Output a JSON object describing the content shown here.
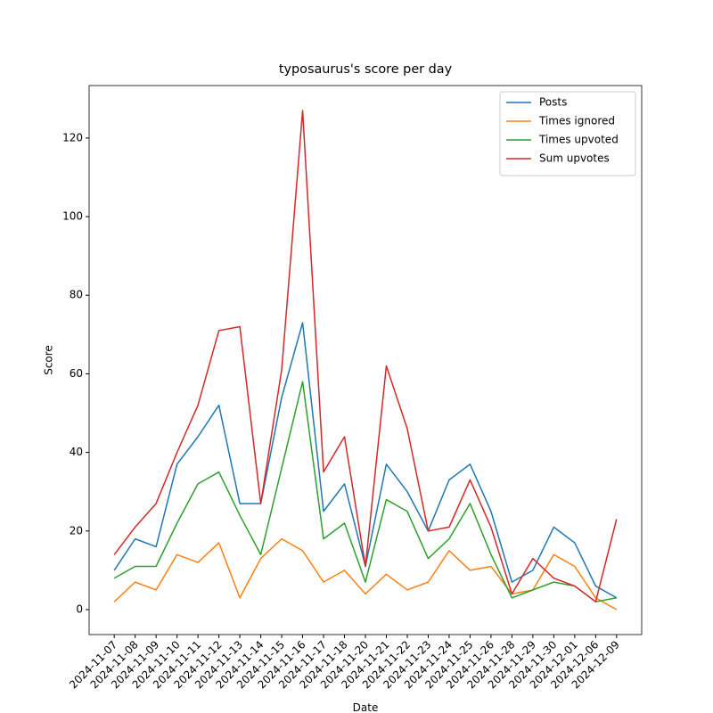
{
  "chart_data": {
    "type": "line",
    "title": "typosaurus's score per day",
    "xlabel": "Date",
    "ylabel": "Score",
    "categories": [
      "2024-11-07",
      "2024-11-08",
      "2024-11-09",
      "2024-11-10",
      "2024-11-11",
      "2024-11-12",
      "2024-11-13",
      "2024-11-14",
      "2024-11-15",
      "2024-11-16",
      "2024-11-17",
      "2024-11-18",
      "2024-11-20",
      "2024-11-21",
      "2024-11-22",
      "2024-11-23",
      "2024-11-24",
      "2024-11-25",
      "2024-11-26",
      "2024-11-28",
      "2024-11-29",
      "2024-11-30",
      "2024-12-01",
      "2024-12-06",
      "2024-12-09"
    ],
    "series": [
      {
        "name": "Posts",
        "color": "#1f77b4",
        "values": [
          10,
          18,
          16,
          37,
          44,
          52,
          27,
          27,
          54,
          73,
          25,
          32,
          11,
          37,
          30,
          20,
          33,
          37,
          25,
          7,
          10,
          21,
          17,
          6,
          3
        ]
      },
      {
        "name": "Times ignored",
        "color": "#ff7f0e",
        "values": [
          2,
          7,
          5,
          14,
          12,
          17,
          3,
          13,
          18,
          15,
          7,
          10,
          4,
          9,
          5,
          7,
          15,
          10,
          11,
          4,
          5,
          14,
          11,
          3,
          0
        ]
      },
      {
        "name": "Times upvoted",
        "color": "#2ca02c",
        "values": [
          8,
          11,
          11,
          22,
          32,
          35,
          24,
          14,
          36,
          58,
          18,
          22,
          7,
          28,
          25,
          13,
          18,
          27,
          14,
          3,
          5,
          7,
          6,
          2,
          3
        ]
      },
      {
        "name": "Sum upvotes",
        "color": "#d62728",
        "values": [
          14,
          21,
          27,
          40,
          52,
          71,
          72,
          27,
          61,
          127,
          35,
          44,
          11,
          62,
          46,
          20,
          21,
          33,
          21,
          4,
          13,
          8,
          6,
          2,
          23
        ]
      }
    ],
    "ylim": [
      -6.35,
      133.35
    ],
    "yticks": [
      0,
      20,
      40,
      60,
      80,
      100,
      120
    ],
    "legend": "upper right",
    "grid": false
  }
}
